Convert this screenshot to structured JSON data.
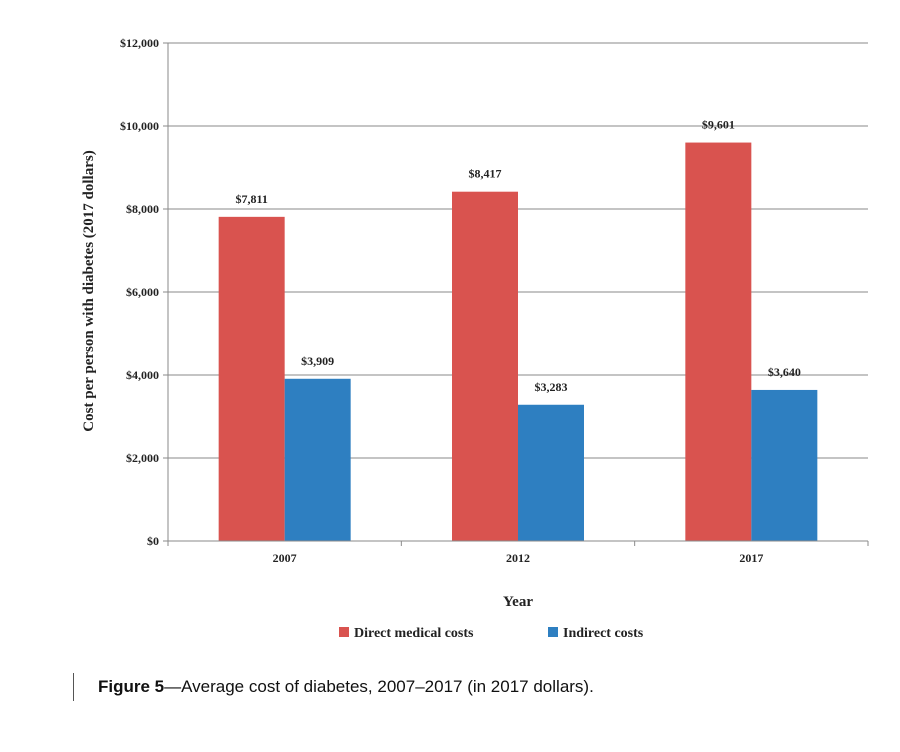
{
  "chart_data": {
    "type": "bar",
    "categories": [
      "2007",
      "2012",
      "2017"
    ],
    "series": [
      {
        "name": "Direct medical costs",
        "values": [
          7811,
          8417,
          9601
        ],
        "labels": [
          "$7,811",
          "$8,417",
          "$9,601"
        ],
        "color": "#d9534f"
      },
      {
        "name": "Indirect costs",
        "values": [
          3909,
          3283,
          3640
        ],
        "labels": [
          "$3,909",
          "$3,283",
          "$3,640"
        ],
        "color": "#2e7fc1"
      }
    ],
    "xlabel": "Year",
    "ylabel": "Cost per person with diabetes (2017 dollars)",
    "ylim": [
      0,
      12000
    ],
    "yticks": [
      0,
      2000,
      4000,
      6000,
      8000,
      10000,
      12000
    ],
    "ytick_labels": [
      "$0",
      "$2,000",
      "$4,000",
      "$6,000",
      "$8,000",
      "$10,000",
      "$12,000"
    ],
    "grid": true,
    "legend_position": "bottom"
  },
  "caption": {
    "label": "Figure 5",
    "text": "—Average cost of diabetes, 2007–2017 (in 2017 dollars)."
  }
}
